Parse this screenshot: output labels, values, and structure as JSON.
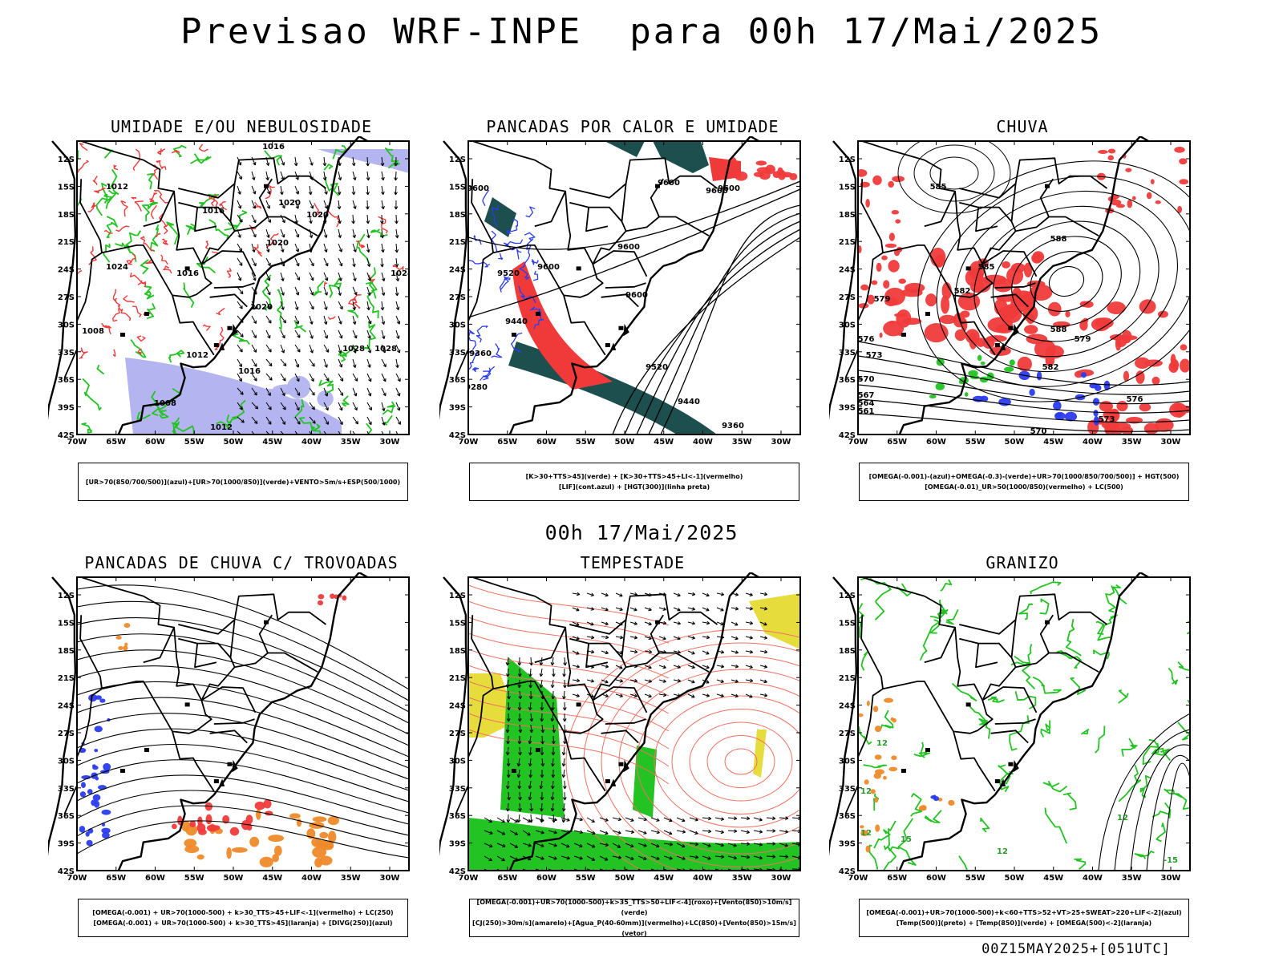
{
  "main_title": "Previsao WRF-INPE  para 00h 17/Mai/2025",
  "mid_date": "00h 17/Mai/2025",
  "footer": "00Z15MAY2025+[051UTC]",
  "axes": {
    "lat_labels": [
      "12S",
      "15S",
      "18S",
      "21S",
      "24S",
      "27S",
      "30S",
      "33S",
      "36S",
      "39S",
      "42S"
    ],
    "lon_labels": [
      "70W",
      "65W",
      "60W",
      "55W",
      "50W",
      "45W",
      "40W",
      "35W",
      "30W"
    ]
  },
  "colors": {
    "green": "#22c322",
    "red": "#f03a3a",
    "blue": "#2a3cf0",
    "lavender": "#b4b4f0",
    "darkteal": "#1d4f4f",
    "orange": "#ee8a2a",
    "yellow": "#e6dc3c",
    "salmon": "#f07060"
  },
  "panels": [
    {
      "title": "UMIDADE E/OU NEBULOSIDADE",
      "legend": [
        "[UR>70(850/700/500)](azul)+[UR>70(1000/850)](verde)+VENTO>5m/s+ESP(500/1000)"
      ]
    },
    {
      "title": "PANCADAS POR CALOR E UMIDADE",
      "legend": [
        "[K>30+TTS>45](verde) + [K>30+TTS>45+LI<-1](vermelho)",
        "[LIF](cont.azul) + [HGT(300)](linha preta)"
      ]
    },
    {
      "title": "CHUVA",
      "legend": [
        "[OMEGA(-0.001)-(azul)+OMEGA(-0.3)-(verde)+UR>70(1000/850/700/500)] + HGT(500)",
        "[OMEGA(-0.01)_UR>50(1000/850)(vermelho) + LC(500)"
      ]
    },
    {
      "title": "PANCADAS DE CHUVA C/ TROVOADAS",
      "legend": [
        "[OMEGA(-0.001) + UR>70(1000-500) + k>30_TTS>45+LIF<-1](vermelho) + LC(250)",
        "[OMEGA(-0.001) + UR>70(1000-500) + k>30_TTS>45](laranja) + [DIVG(250)](azul)"
      ]
    },
    {
      "title": "TEMPESTADE",
      "legend": [
        "[OMEGA(-0.001)+UR>70(1000-500)+k>35_TTS>50+LIF<-4](roxo)+[Vento(850)>10m/s](verde)",
        "[CJ(250)>30m/s](amarelo)+[Agua_P(40-60mm)](vermelho)+LC(850)+[Vento(850)>15m/s](vetor)"
      ]
    },
    {
      "title": "GRANIZO",
      "legend": [
        "[OMEGA(-0.001)+UR>70(1000-500)+k<60+TTS>52+VT>25+SWEAT>220+LIF<-2](azul)",
        "[Temp(500)](preto) + [Temp(850)](verde) + [OMEGA(500)<-2](laranja)"
      ]
    }
  ],
  "contour_labels": {
    "p1": [
      "1012",
      "1016",
      "1016",
      "1020",
      "1020",
      "1020",
      "1024",
      "1024",
      "1028",
      "1028",
      "1020",
      "1016",
      "1012",
      "1008",
      "1008",
      "1012",
      "1016"
    ],
    "p2": [
      "9600",
      "9600",
      "9600",
      "9520",
      "9600",
      "9600",
      "9600",
      "9440",
      "9360",
      "9280",
      "9520",
      "9440",
      "9360",
      "9600"
    ],
    "p3": [
      "585",
      "588",
      "585",
      "582",
      "579",
      "576",
      "573",
      "570",
      "567",
      "564",
      "561",
      "579",
      "576",
      "573",
      "570",
      "582",
      "588"
    ],
    "p6": [
      "12",
      "12",
      "12",
      "15",
      "12",
      "-15",
      "12"
    ]
  }
}
